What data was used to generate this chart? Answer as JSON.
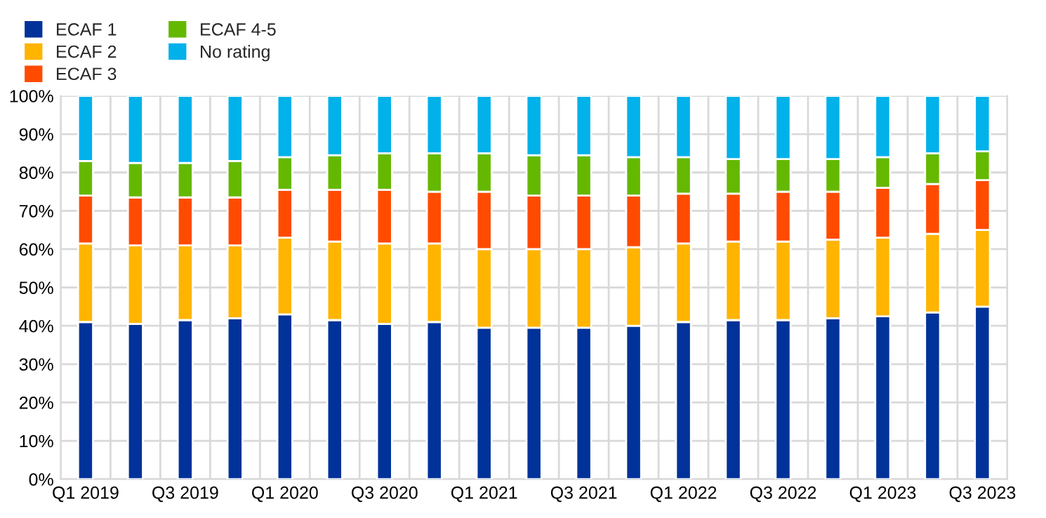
{
  "chart_data": {
    "type": "bar",
    "stacked": true,
    "categories": [
      "Q1 2019",
      null,
      "Q3 2019",
      null,
      "Q1 2020",
      null,
      "Q3 2020",
      null,
      "Q1 2021",
      null,
      "Q3 2021",
      null,
      "Q1 2022",
      null,
      "Q3 2022",
      null,
      "Q1 2023",
      null,
      "Q3 2023"
    ],
    "series": [
      {
        "name": "ECAF 1",
        "color": "#003299",
        "values": [
          41,
          40.5,
          41.5,
          42,
          43,
          41.5,
          40.5,
          41,
          39.5,
          39.5,
          39.5,
          40,
          41,
          41.5,
          41.5,
          42,
          42.5,
          43.5,
          45
        ]
      },
      {
        "name": "ECAF 2",
        "color": "#ffb400",
        "values": [
          20.5,
          20.5,
          19.5,
          19,
          20,
          20.5,
          21,
          20.5,
          20.5,
          20.5,
          20.5,
          20.5,
          20.5,
          20.5,
          20.5,
          20.5,
          20.5,
          20.5,
          20
        ]
      },
      {
        "name": "ECAF 3",
        "color": "#ff4b00",
        "values": [
          12.5,
          12.5,
          12.5,
          12.5,
          12.5,
          13.5,
          14,
          13.5,
          15,
          14,
          14,
          13.5,
          13,
          12.5,
          13,
          12.5,
          13,
          13,
          13
        ]
      },
      {
        "name": "ECAF 4-5",
        "color": "#65b800",
        "values": [
          9,
          9,
          9,
          9.5,
          8.5,
          9,
          9.5,
          10,
          10,
          10.5,
          10.5,
          10,
          9.5,
          9,
          8.5,
          8.5,
          8,
          8,
          7.5
        ]
      },
      {
        "name": "No rating",
        "color": "#00b1ea",
        "values": [
          17,
          17.5,
          17.5,
          17,
          16,
          15.5,
          15,
          15,
          15,
          15.5,
          15.5,
          16,
          16,
          16.5,
          16.5,
          16.5,
          16,
          15,
          14.5
        ]
      }
    ],
    "ylim": [
      0,
      100
    ],
    "yticks": [
      {
        "value": 0,
        "label": "0%"
      },
      {
        "value": 10,
        "label": "10%"
      },
      {
        "value": 20,
        "label": "20%"
      },
      {
        "value": 30,
        "label": "30%"
      },
      {
        "value": 40,
        "label": "40%"
      },
      {
        "value": 50,
        "label": "50%"
      },
      {
        "value": 60,
        "label": "60%"
      },
      {
        "value": 70,
        "label": "70%"
      },
      {
        "value": 80,
        "label": "80%"
      },
      {
        "value": 90,
        "label": "90%"
      },
      {
        "value": 100,
        "label": "100%"
      }
    ],
    "grid": true,
    "legend": "top left"
  }
}
